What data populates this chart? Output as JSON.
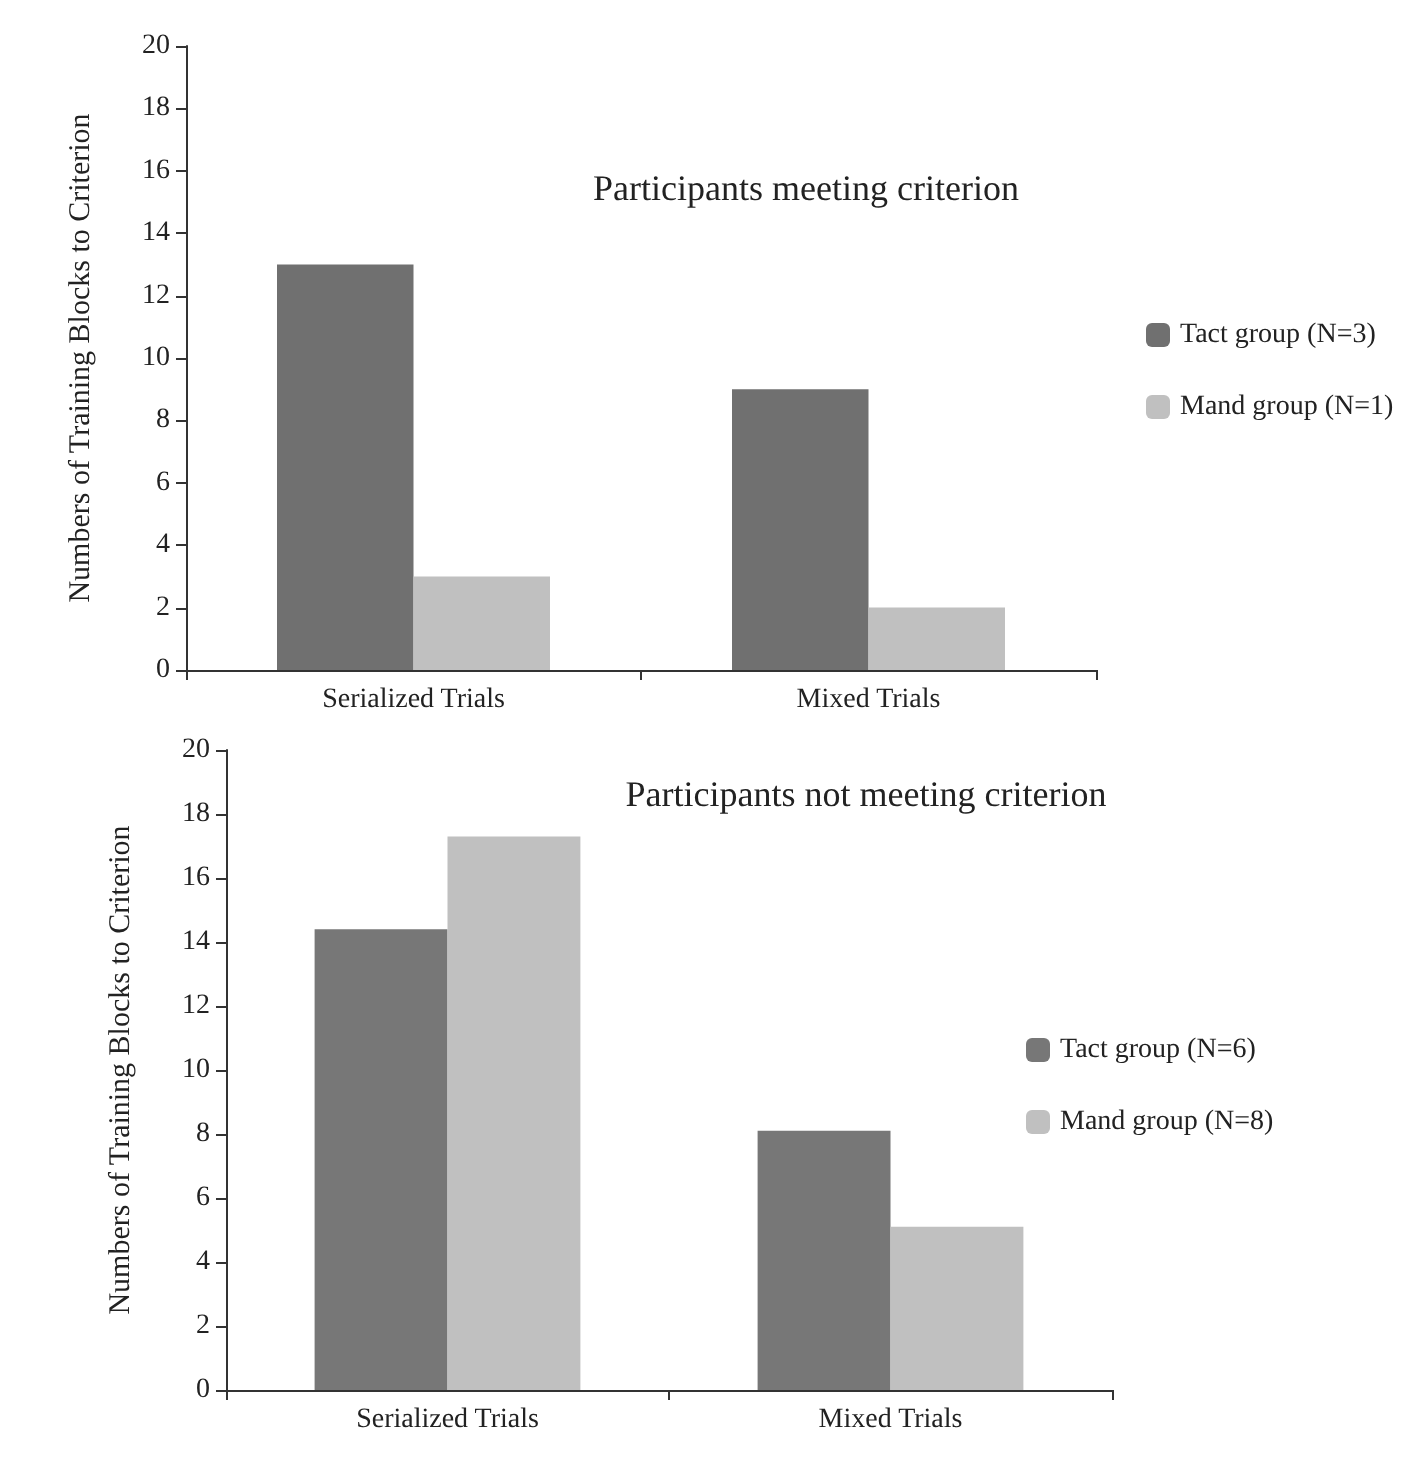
{
  "chart_data": [
    {
      "type": "bar",
      "title": "Participants meeting criterion",
      "ylabel": "Numbers of Training Blocks to Criterion",
      "categories": [
        "Serialized Trials",
        "Mixed Trials"
      ],
      "series": [
        {
          "name": "Tact group (N=3)",
          "color": "#707070",
          "values": [
            13,
            9
          ]
        },
        {
          "name": "Mand group (N=1)",
          "color": "#c0c0c0",
          "values": [
            3,
            2
          ]
        }
      ],
      "ylim": [
        0,
        20
      ],
      "yticks": [
        0,
        2,
        4,
        6,
        8,
        10,
        12,
        14,
        16,
        18,
        20
      ],
      "legend": "right",
      "grid": false
    },
    {
      "type": "bar",
      "title": "Participants not meeting criterion",
      "ylabel": "Numbers of Training Blocks to Criterion",
      "categories": [
        "Serialized Trials",
        "Mixed Trials"
      ],
      "series": [
        {
          "name": "Tact group (N=6)",
          "color": "#777777",
          "values": [
            14.4,
            8.1
          ]
        },
        {
          "name": "Mand group (N=8)",
          "color": "#c0c0c0",
          "values": [
            17.3,
            5.1
          ]
        }
      ],
      "ylim": [
        0,
        20
      ],
      "yticks": [
        0,
        2,
        4,
        6,
        8,
        10,
        12,
        14,
        16,
        18,
        20
      ],
      "legend": "right",
      "grid": false
    }
  ]
}
